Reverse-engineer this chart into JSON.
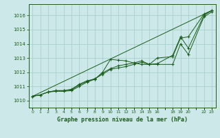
{
  "title": "Graphe pression niveau de la mer (hPa)",
  "bg_color": "#cce8e8",
  "grid_color": "#aacece",
  "line_color": "#1a5c1a",
  "xlim": [
    -0.5,
    23.5
  ],
  "ylim": [
    1009.5,
    1016.8
  ],
  "yticks": [
    1010,
    1011,
    1012,
    1013,
    1014,
    1015,
    1016
  ],
  "xtick_positions": [
    0,
    1,
    2,
    3,
    4,
    5,
    6,
    7,
    8,
    9,
    10,
    11,
    12,
    13,
    14,
    15,
    16,
    17,
    18,
    19,
    20,
    21,
    22,
    23
  ],
  "xtick_labels": [
    "0",
    "1",
    "2",
    "3",
    "4",
    "5",
    "6",
    "7",
    "8",
    "9",
    "10",
    "11",
    "12",
    "13",
    "14",
    "15",
    "16",
    "",
    "18",
    "19",
    "20",
    "",
    "22",
    "23"
  ],
  "series": [
    {
      "x": [
        0,
        1,
        2,
        3,
        4,
        5,
        6,
        7,
        8,
        9,
        10,
        11,
        12,
        13,
        14,
        15,
        16,
        18,
        19,
        20,
        22,
        23
      ],
      "y": [
        1010.3,
        1010.4,
        1010.6,
        1010.7,
        1010.7,
        1010.8,
        1011.15,
        1011.4,
        1011.5,
        1012.0,
        1012.9,
        1012.85,
        1012.8,
        1012.65,
        1012.55,
        1012.55,
        1012.55,
        1012.55,
        1014.0,
        1013.25,
        1015.9,
        1016.25
      ],
      "markers": true
    },
    {
      "x": [
        0,
        1,
        2,
        3,
        4,
        5,
        6,
        7,
        8,
        9,
        10,
        11,
        12,
        13,
        14,
        15,
        16,
        18,
        19,
        20,
        22,
        23
      ],
      "y": [
        1010.3,
        1010.4,
        1010.6,
        1010.7,
        1010.7,
        1010.75,
        1011.1,
        1011.35,
        1011.55,
        1011.85,
        1012.2,
        1012.3,
        1012.4,
        1012.55,
        1012.7,
        1012.55,
        1012.6,
        1013.2,
        1014.5,
        1013.7,
        1016.0,
        1016.35
      ],
      "markers": true
    },
    {
      "x": [
        0,
        1,
        2,
        3,
        4,
        5,
        6,
        7,
        8,
        9,
        10,
        11,
        12,
        13,
        14,
        15,
        16,
        18,
        19,
        20,
        22,
        23
      ],
      "y": [
        1010.3,
        1010.4,
        1010.6,
        1010.65,
        1010.65,
        1010.7,
        1011.0,
        1011.3,
        1011.5,
        1011.95,
        1012.25,
        1012.45,
        1012.55,
        1012.65,
        1012.8,
        1012.55,
        1013.0,
        1013.1,
        1014.4,
        1014.5,
        1016.1,
        1016.35
      ],
      "markers": true
    },
    {
      "x": [
        0,
        23
      ],
      "y": [
        1010.3,
        1016.35
      ],
      "markers": false
    }
  ]
}
